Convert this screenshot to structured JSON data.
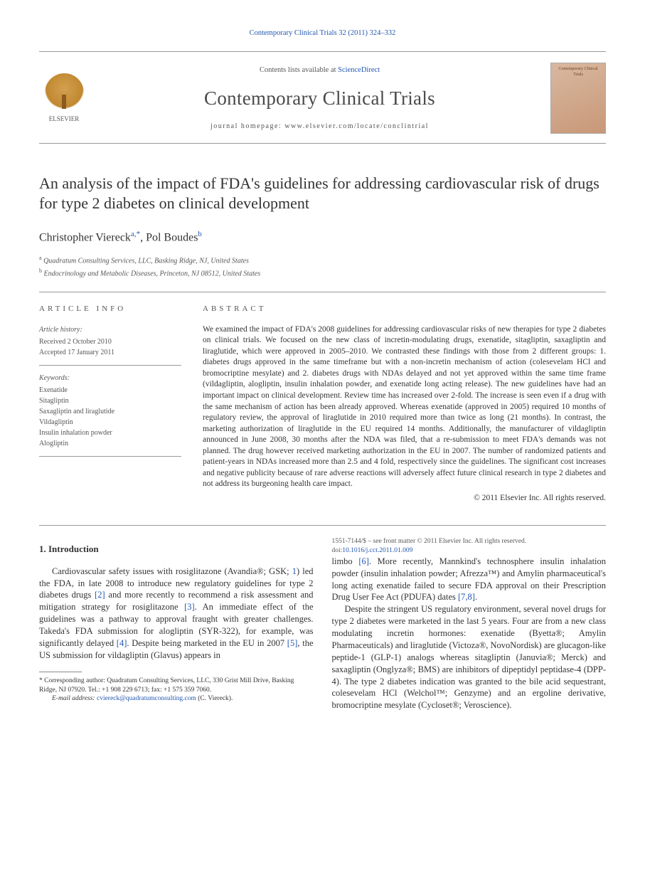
{
  "header": {
    "citation_prefix": "Contemporary Clinical Trials 32 (2011) 324–332",
    "contents_line_pre": "Contents lists available at ",
    "contents_line_link": "ScienceDirect",
    "journal_title": "Contemporary Clinical Trials",
    "homepage_pre": "journal homepage: ",
    "homepage_url": "www.elsevier.com/locate/conclintrial",
    "elsevier": "ELSEVIER",
    "cover_text": "Contemporary Clinical Trials"
  },
  "article": {
    "title": "An analysis of the impact of FDA's guidelines for addressing cardiovascular risk of drugs for type 2 diabetes on clinical development",
    "authors": {
      "a1_name": "Christopher Viereck",
      "a1_aff": "a",
      "a1_corr": "*",
      "sep": ", ",
      "a2_name": "Pol Boudes",
      "a2_aff": "b"
    },
    "affiliations": {
      "a": "Quadratum Consulting Services, LLC, Basking Ridge, NJ, United States",
      "b": "Endocrinology and Metabolic Diseases, Princeton, NJ 08512, United States"
    }
  },
  "info": {
    "header_info": "ARTICLE INFO",
    "header_abstract": "ABSTRACT",
    "history_label": "Article history:",
    "received": "Received 2 October 2010",
    "accepted": "Accepted 17 January 2011",
    "keywords_label": "Keywords:",
    "kw1": "Exenatide",
    "kw2": "Sitagliptin",
    "kw3": "Saxagliptin and liraglutide",
    "kw4": "Vildagliptin",
    "kw5": "Insulin inhalation powder",
    "kw6": "Alogliptin"
  },
  "abstract": {
    "text": "We examined the impact of FDA's 2008 guidelines for addressing cardiovascular risks of new therapies for type 2 diabetes on clinical trials. We focused on the new class of incretin-modulating drugs, exenatide, sitagliptin, saxagliptin and liraglutide, which were approved in 2005–2010. We contrasted these findings with those from 2 different groups: 1. diabetes drugs approved in the same timeframe but with a non-incretin mechanism of action (colesevelam HCl and bromocriptine mesylate) and 2. diabetes drugs with NDAs delayed and not yet approved within the same time frame (vildagliptin, alogliptin, insulin inhalation powder, and exenatide long acting release). The new guidelines have had an important impact on clinical development. Review time has increased over 2-fold. The increase is seen even if a drug with the same mechanism of action has been already approved. Whereas exenatide (approved in 2005) required 10 months of regulatory review, the approval of liraglutide in 2010 required more than twice as long (21 months). In contrast, the marketing authorization of liraglutide in the EU required 14 months. Additionally, the manufacturer of vildagliptin announced in June 2008, 30 months after the NDA was filed, that a re-submission to meet FDA's demands was not planned. The drug however received marketing authorization in the EU in 2007. The number of randomized patients and patient-years in NDAs increased more than 2.5 and 4 fold, respectively since the guidelines. The significant cost increases and negative publicity because of rare adverse reactions will adversely affect future clinical research in type 2 diabetes and not address its burgeoning health care impact.",
    "copyright": "© 2011 Elsevier Inc. All rights reserved."
  },
  "body": {
    "intro_heading": "1. Introduction",
    "p1_a": "Cardiovascular safety issues with rosiglitazone (Avandia®; GSK; ",
    "p1_ref1": "1",
    "p1_b": ") led the FDA, in late 2008 to introduce new regulatory guidelines for type 2 diabetes drugs ",
    "p1_ref2": "[2]",
    "p1_c": " and more recently to recommend a risk assessment and mitigation strategy for rosiglitazone ",
    "p1_ref3": "[3]",
    "p1_d": ". An immediate effect of the guidelines was a pathway to approval fraught with greater challenges. Takeda's FDA submission for alogliptin (SYR-322), for example, was significantly delayed ",
    "p1_ref4": "[4]",
    "p1_e": ". Despite being marketed in the EU in 2007 ",
    "p1_ref5": "[5]",
    "p1_f": ", the US submission for vildagliptin (Glavus) appears in",
    "p2_a": "limbo ",
    "p2_ref6": "[6]",
    "p2_b": ". More recently, Mannkind's technosphere insulin inhalation powder (insulin inhalation powder; Afrezza™) and Amylin pharmaceutical's long acting exenatide failed to secure FDA approval on their Prescription Drug User Fee Act (PDUFA) dates ",
    "p2_ref78": "[7,8]",
    "p2_c": ".",
    "p3": "Despite the stringent US regulatory environment, several novel drugs for type 2 diabetes were marketed in the last 5 years. Four are from a new class modulating incretin hormones: exenatide (Byetta®; Amylin Pharmaceuticals) and liraglutide (Victoza®, NovoNordisk) are glucagon-like peptide-1 (GLP-1) analogs whereas sitagliptin (Januvia®; Merck) and saxagliptin (Onglyza®; BMS) are inhibitors of dipeptidyl peptidase-4 (DPP-4). The type 2 diabetes indication was granted to the bile acid sequestrant, colesevelam HCl (Welchol™; Genzyme) and an ergoline derivative, bromocriptine mesylate (Cycloset®; Veroscience)."
  },
  "footnote": {
    "corr_label": "* Corresponding author: ",
    "corr_text": "Quadratum Consulting Services, LLC, 330 Grist Mill Drive, Basking Ridge, NJ 07920. Tel.: +1 908 229 6713; fax: +1 575 359 7060.",
    "email_label": "E-mail address: ",
    "email": "cviereck@quadratumconsulting.com",
    "email_who": " (C. Viereck)."
  },
  "footer": {
    "issn_line": "1551-7144/$ – see front matter © 2011 Elsevier Inc. All rights reserved.",
    "doi_label": "doi:",
    "doi": "10.1016/j.cct.2011.01.009"
  },
  "colors": {
    "link": "#2257b0",
    "text": "#333333",
    "muted": "#555555",
    "rule": "#999999"
  }
}
